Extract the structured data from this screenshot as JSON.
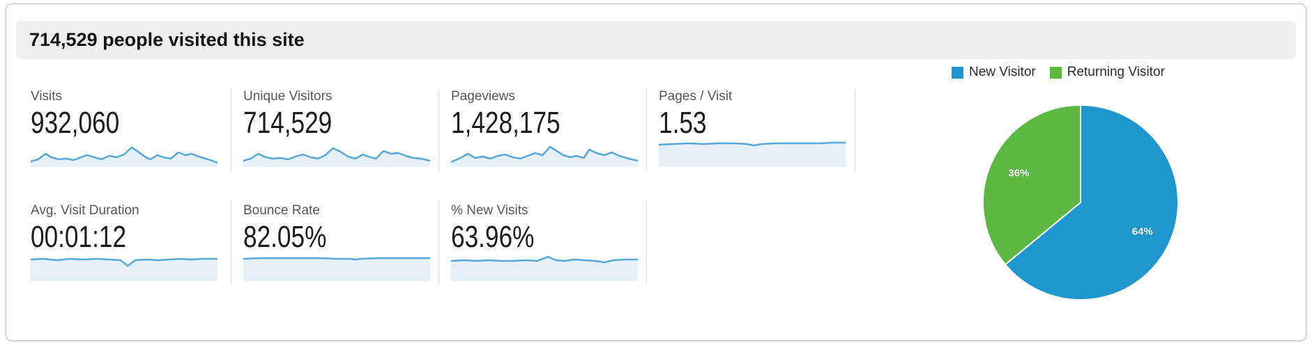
{
  "header": {
    "title": "714,529 people visited this site"
  },
  "legend": {
    "items": [
      {
        "label": "New Visitor",
        "color": "#2096ce"
      },
      {
        "label": "Returning Visitor",
        "color": "#5cb843"
      }
    ]
  },
  "metrics": [
    {
      "label": "Visits",
      "value": "932,060"
    },
    {
      "label": "Unique Visitors",
      "value": "714,529"
    },
    {
      "label": "Pageviews",
      "value": "1,428,175"
    },
    {
      "label": "Pages / Visit",
      "value": "1.53"
    },
    {
      "label": "Avg. Visit Duration",
      "value": "00:01:12"
    },
    {
      "label": "Bounce Rate",
      "value": "82.05%"
    },
    {
      "label": "% New Visits",
      "value": "63.96%"
    }
  ],
  "colors": {
    "header_bg": "#efefef",
    "divider": "#d9d9d9",
    "label_text": "#565656",
    "value_text": "#1b1b1b",
    "spark_line": "#57a8d8",
    "spark_fill": "#e6f0f8",
    "pie_blue": "#2096ce",
    "pie_green": "#5cb843"
  },
  "chart_data": [
    {
      "type": "pie",
      "title": "New vs Returning Visitor share",
      "labels": [
        "New Visitor",
        "Returning Visitor"
      ],
      "values": [
        64,
        36
      ],
      "value_labels": [
        "64%",
        "36%"
      ],
      "colors": [
        "#2096ce",
        "#5cb843"
      ],
      "legend_position": "top-right",
      "start_angle": "12 o'clock",
      "direction": "clockwise",
      "slice_border_color": "#ffffff"
    },
    {
      "type": "line",
      "subtype": "sparkline-area",
      "coords": "x: 0-100 left to right (time), y: 0-40 top-down pixel space (lower y = higher value)",
      "line_color": "#57a8d8",
      "fill_color": "#e6f0f8",
      "series": [
        {
          "name": "visits",
          "label": "Visits",
          "value": "932,060",
          "points": [
            [
              0,
              32
            ],
            [
              4,
              29
            ],
            [
              8,
              21
            ],
            [
              11,
              26
            ],
            [
              15,
              29
            ],
            [
              19,
              28
            ],
            [
              23,
              30
            ],
            [
              27,
              26
            ],
            [
              30,
              23
            ],
            [
              34,
              26
            ],
            [
              38,
              29
            ],
            [
              42,
              24
            ],
            [
              46,
              26
            ],
            [
              50,
              22
            ],
            [
              54,
              12
            ],
            [
              57,
              17
            ],
            [
              61,
              25
            ],
            [
              64,
              29
            ],
            [
              68,
              23
            ],
            [
              71,
              26
            ],
            [
              75,
              28
            ],
            [
              79,
              19
            ],
            [
              83,
              23
            ],
            [
              86,
              21
            ],
            [
              90,
              25
            ],
            [
              95,
              29
            ],
            [
              100,
              34
            ]
          ]
        },
        {
          "name": "unique_visitors",
          "label": "Unique Visitors",
          "value": "714,529",
          "points": [
            [
              0,
              31
            ],
            [
              4,
              28
            ],
            [
              8,
              21
            ],
            [
              12,
              26
            ],
            [
              16,
              28
            ],
            [
              20,
              27
            ],
            [
              24,
              29
            ],
            [
              28,
              25
            ],
            [
              32,
              22
            ],
            [
              36,
              26
            ],
            [
              40,
              28
            ],
            [
              44,
              23
            ],
            [
              48,
              13
            ],
            [
              52,
              18
            ],
            [
              56,
              25
            ],
            [
              60,
              28
            ],
            [
              64,
              22
            ],
            [
              68,
              26
            ],
            [
              71,
              28
            ],
            [
              75,
              17
            ],
            [
              79,
              21
            ],
            [
              83,
              20
            ],
            [
              87,
              24
            ],
            [
              91,
              27
            ],
            [
              95,
              28
            ],
            [
              100,
              31
            ]
          ]
        },
        {
          "name": "pageviews",
          "label": "Pageviews",
          "value": "1,428,175",
          "points": [
            [
              0,
              33
            ],
            [
              5,
              27
            ],
            [
              9,
              21
            ],
            [
              13,
              27
            ],
            [
              17,
              25
            ],
            [
              21,
              28
            ],
            [
              25,
              24
            ],
            [
              29,
              22
            ],
            [
              33,
              26
            ],
            [
              37,
              28
            ],
            [
              41,
              24
            ],
            [
              45,
              20
            ],
            [
              49,
              23
            ],
            [
              53,
              11
            ],
            [
              56,
              16
            ],
            [
              60,
              23
            ],
            [
              64,
              26
            ],
            [
              67,
              24
            ],
            [
              71,
              27
            ],
            [
              74,
              15
            ],
            [
              78,
              20
            ],
            [
              82,
              23
            ],
            [
              86,
              19
            ],
            [
              90,
              24
            ],
            [
              95,
              28
            ],
            [
              100,
              31
            ]
          ]
        },
        {
          "name": "pages_per_visit",
          "label": "Pages / Visit",
          "value": "1.53",
          "points": [
            [
              0,
              8
            ],
            [
              8,
              7
            ],
            [
              16,
              6
            ],
            [
              24,
              7
            ],
            [
              32,
              6
            ],
            [
              40,
              6
            ],
            [
              47,
              7
            ],
            [
              51,
              9
            ],
            [
              55,
              7
            ],
            [
              63,
              6
            ],
            [
              71,
              6
            ],
            [
              79,
              6
            ],
            [
              87,
              6
            ],
            [
              93,
              5
            ],
            [
              100,
              5
            ]
          ]
        },
        {
          "name": "avg_visit_duration",
          "label": "Avg. Visit Duration",
          "value": "00:01:12",
          "points": [
            [
              0,
              9
            ],
            [
              7,
              8
            ],
            [
              14,
              10
            ],
            [
              21,
              8
            ],
            [
              28,
              9
            ],
            [
              35,
              8
            ],
            [
              42,
              9
            ],
            [
              48,
              10
            ],
            [
              52,
              18
            ],
            [
              56,
              10
            ],
            [
              62,
              9
            ],
            [
              68,
              10
            ],
            [
              74,
              9
            ],
            [
              80,
              8
            ],
            [
              86,
              9
            ],
            [
              92,
              8
            ],
            [
              100,
              8
            ]
          ]
        },
        {
          "name": "bounce_rate",
          "label": "Bounce Rate",
          "value": "82.05%",
          "points": [
            [
              0,
              8
            ],
            [
              10,
              7
            ],
            [
              20,
              7
            ],
            [
              30,
              7
            ],
            [
              40,
              7
            ],
            [
              50,
              8
            ],
            [
              57,
              8
            ],
            [
              60,
              9
            ],
            [
              63,
              8
            ],
            [
              72,
              7
            ],
            [
              82,
              7
            ],
            [
              92,
              7
            ],
            [
              100,
              7
            ]
          ]
        },
        {
          "name": "pct_new_visits",
          "label": "% New Visits",
          "value": "63.96%",
          "points": [
            [
              0,
              11
            ],
            [
              7,
              10
            ],
            [
              14,
              11
            ],
            [
              20,
              10
            ],
            [
              27,
              11
            ],
            [
              33,
              11
            ],
            [
              40,
              10
            ],
            [
              46,
              11
            ],
            [
              52,
              5
            ],
            [
              56,
              10
            ],
            [
              61,
              11
            ],
            [
              66,
              9
            ],
            [
              71,
              10
            ],
            [
              77,
              11
            ],
            [
              82,
              13
            ],
            [
              87,
              10
            ],
            [
              93,
              9
            ],
            [
              100,
              9
            ]
          ]
        }
      ]
    }
  ]
}
